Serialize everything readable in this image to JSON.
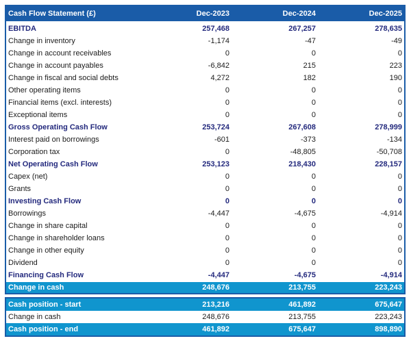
{
  "colors": {
    "header_blue": "#1A5CA8",
    "accent_cyan": "#1095CE",
    "navy_text": "#23297D"
  },
  "table": {
    "title": "Cash Flow Statement (£)",
    "columns": [
      "Dec-2023",
      "Dec-2024",
      "Dec-2025"
    ],
    "rows": [
      {
        "label": "EBITDA",
        "style": "bold",
        "values": [
          "257,468",
          "267,257",
          "278,635"
        ]
      },
      {
        "label": "Change in inventory",
        "style": "normal",
        "values": [
          "-1,174",
          "-47",
          "-49"
        ]
      },
      {
        "label": "Change in account receivables",
        "style": "normal",
        "values": [
          "0",
          "0",
          "0"
        ]
      },
      {
        "label": "Change in account payables",
        "style": "normal",
        "values": [
          "-6,842",
          "215",
          "223"
        ]
      },
      {
        "label": "Change in fiscal and social debts",
        "style": "normal",
        "values": [
          "4,272",
          "182",
          "190"
        ]
      },
      {
        "label": "Other operating items",
        "style": "normal",
        "values": [
          "0",
          "0",
          "0"
        ]
      },
      {
        "label": "Financial items (excl. interests)",
        "style": "normal",
        "values": [
          "0",
          "0",
          "0"
        ]
      },
      {
        "label": "Exceptional items",
        "style": "normal",
        "values": [
          "0",
          "0",
          "0"
        ]
      },
      {
        "label": "Gross Operating Cash Flow",
        "style": "bold",
        "values": [
          "253,724",
          "267,608",
          "278,999"
        ]
      },
      {
        "label": "Interest paid on borrowings",
        "style": "normal",
        "values": [
          "-601",
          "-373",
          "-134"
        ]
      },
      {
        "label": "Corporation tax",
        "style": "normal",
        "values": [
          "0",
          "-48,805",
          "-50,708"
        ]
      },
      {
        "label": "Net Operating Cash Flow",
        "style": "bold",
        "values": [
          "253,123",
          "218,430",
          "228,157"
        ]
      },
      {
        "label": "Capex (net)",
        "style": "normal",
        "values": [
          "0",
          "0",
          "0"
        ]
      },
      {
        "label": "Grants",
        "style": "normal",
        "values": [
          "0",
          "0",
          "0"
        ]
      },
      {
        "label": "Investing Cash Flow",
        "style": "bold",
        "values": [
          "0",
          "0",
          "0"
        ]
      },
      {
        "label": "Borrowings",
        "style": "normal",
        "values": [
          "-4,447",
          "-4,675",
          "-4,914"
        ]
      },
      {
        "label": "Change in share capital",
        "style": "normal",
        "values": [
          "0",
          "0",
          "0"
        ]
      },
      {
        "label": "Change in shareholder loans",
        "style": "normal",
        "values": [
          "0",
          "0",
          "0"
        ]
      },
      {
        "label": "Change in other equity",
        "style": "normal",
        "values": [
          "0",
          "0",
          "0"
        ]
      },
      {
        "label": "Dividend",
        "style": "normal",
        "values": [
          "0",
          "0",
          "0"
        ]
      },
      {
        "label": "Financing Cash Flow",
        "style": "bold",
        "values": [
          "-4,447",
          "-4,675",
          "-4,914"
        ]
      },
      {
        "label": "Change in cash",
        "style": "highlight",
        "values": [
          "248,676",
          "213,755",
          "223,243"
        ]
      }
    ],
    "position_rows": [
      {
        "label": "Cash position - start",
        "style": "highlight",
        "values": [
          "213,216",
          "461,892",
          "675,647"
        ]
      },
      {
        "label": "Change in cash",
        "style": "normal",
        "values": [
          "248,676",
          "213,755",
          "223,243"
        ]
      },
      {
        "label": "Cash position - end",
        "style": "highlight",
        "values": [
          "461,892",
          "675,647",
          "898,890"
        ]
      }
    ]
  }
}
